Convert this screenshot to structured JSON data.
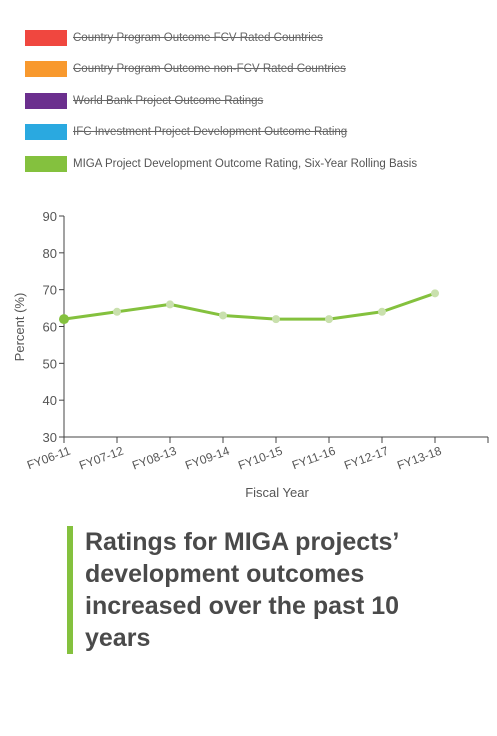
{
  "legend": [
    {
      "label": "Country Program Outcome FCV Rated Countries",
      "color": "#f0473f",
      "hidden": true
    },
    {
      "label": "Country Program Outcome non-FCV Rated Countries",
      "color": "#f8992e",
      "hidden": true
    },
    {
      "label": "World Bank Project Outcome Ratings",
      "color": "#6b2f8e",
      "hidden": true
    },
    {
      "label": "IFC Investment Project Development Outcome Rating",
      "color": "#2aa9e0",
      "hidden": true
    },
    {
      "label": "MIGA Project Development Outcome Rating, Six-Year Rolling Basis",
      "color": "#84c13e",
      "hidden": false
    }
  ],
  "chart_data": {
    "type": "line",
    "categories": [
      "FY06-11",
      "FY07-12",
      "FY08-13",
      "FY09-14",
      "FY10-15",
      "FY11-16",
      "FY12-17",
      "FY13-18"
    ],
    "series": [
      {
        "name": "MIGA Project Development Outcome Rating, Six-Year Rolling Basis",
        "color": "#84c13e",
        "values": [
          62,
          64,
          66,
          63,
          62,
          62,
          64,
          69
        ]
      }
    ],
    "xlabel": "Fiscal Year",
    "ylabel": "Percent (%)",
    "ylim": [
      30,
      90
    ],
    "yticks": [
      30,
      40,
      50,
      60,
      70,
      80,
      90
    ]
  },
  "callout": {
    "text": "Ratings for MIGA projects’ development outcomes increased over the past 10 years"
  }
}
